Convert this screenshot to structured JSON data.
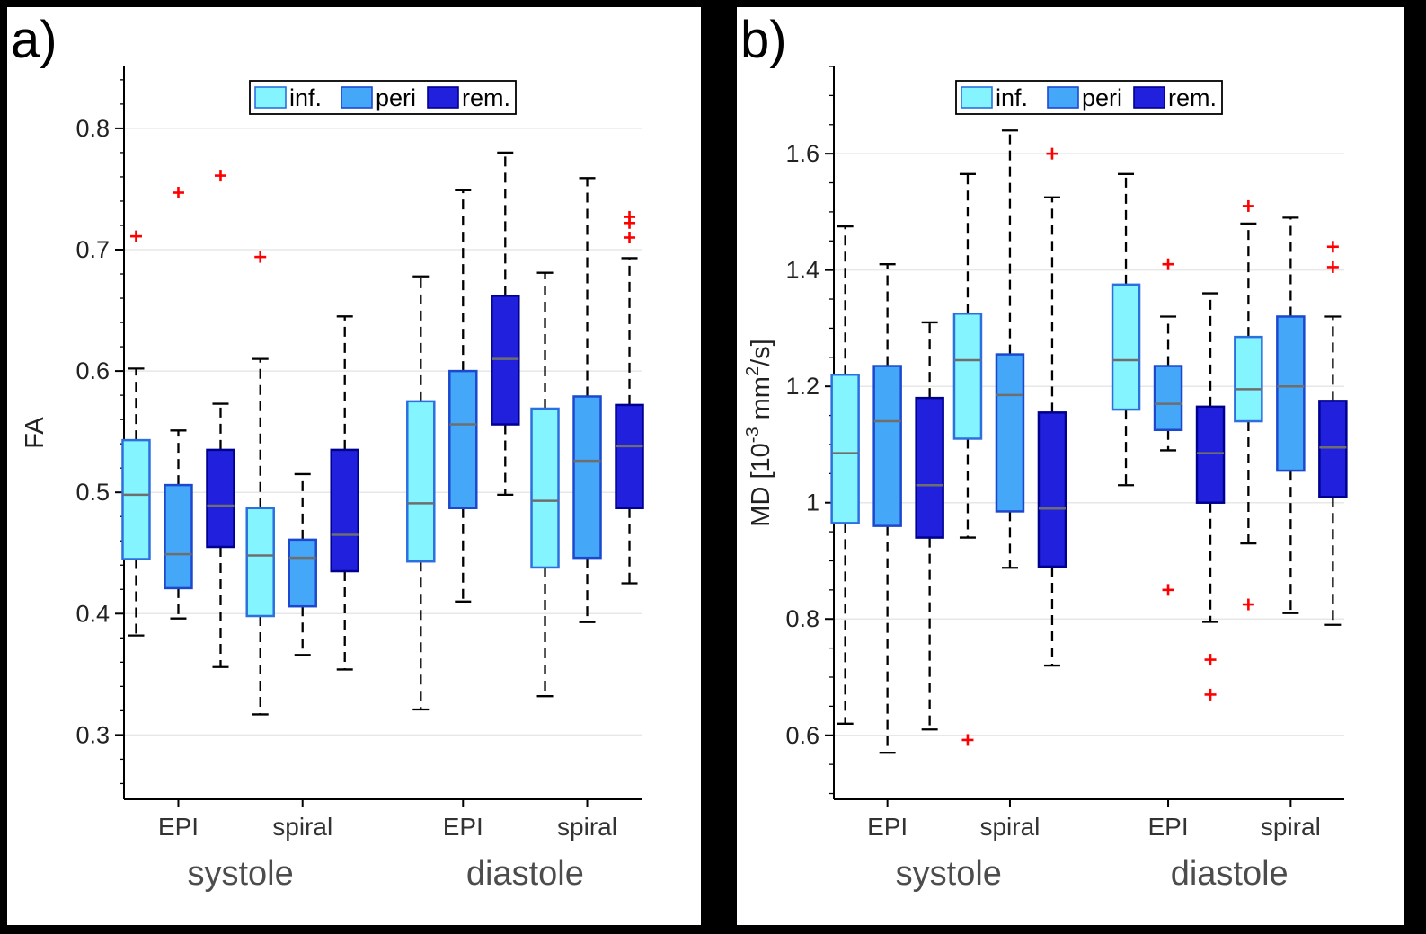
{
  "figure": {
    "background": "#000000",
    "panel_background": "#ffffff"
  },
  "styles": {
    "grid_color": "#e7e7e7",
    "axis_color": "#000000",
    "median_color": "#6e6e6e",
    "whisker_color": "#000000",
    "outlier_color": "#ff0000",
    "tick_label_color": "#222222",
    "xtick_label_color": "#333333",
    "section_label_color": "#4c4c4c",
    "legend_border_color": "#000000"
  },
  "chart_data": [
    {
      "type": "boxplot",
      "panel_label": "a)",
      "ylabel_parts": [
        {
          "t": "FA"
        }
      ],
      "ylim": [
        0.247,
        0.851
      ],
      "yticks": [
        0.3,
        0.4,
        0.5,
        0.6,
        0.7,
        0.8
      ],
      "ytick_labels": [
        "0.3",
        "0.4",
        "0.5",
        "0.6",
        "0.7",
        "0.8"
      ],
      "minor_step": 0.02,
      "x_groups": [
        "EPI",
        "spiral",
        "EPI",
        "spiral"
      ],
      "sections": [
        {
          "label": "systole",
          "span": [
            0,
            1
          ]
        },
        {
          "label": "diastole",
          "span": [
            2,
            3
          ]
        }
      ],
      "legend": [
        "inf.",
        "peri",
        "rem."
      ],
      "series": [
        {
          "name": "inf.",
          "fill": "#84f4ff",
          "edge": "#2b6fe0",
          "boxes": [
            {
              "whislo": 0.382,
              "q1": 0.445,
              "med": 0.498,
              "q3": 0.543,
              "whishi": 0.602,
              "outliers": [
                0.711
              ]
            },
            {
              "whislo": 0.317,
              "q1": 0.398,
              "med": 0.448,
              "q3": 0.487,
              "whishi": 0.61,
              "outliers": [
                0.694
              ]
            },
            {
              "whislo": 0.321,
              "q1": 0.443,
              "med": 0.491,
              "q3": 0.575,
              "whishi": 0.678,
              "outliers": []
            },
            {
              "whislo": 0.332,
              "q1": 0.438,
              "med": 0.493,
              "q3": 0.569,
              "whishi": 0.681,
              "outliers": []
            }
          ]
        },
        {
          "name": "peri",
          "fill": "#44a7f7",
          "edge": "#1c48d0",
          "boxes": [
            {
              "whislo": 0.396,
              "q1": 0.421,
              "med": 0.449,
              "q3": 0.506,
              "whishi": 0.551,
              "outliers": [
                0.747
              ]
            },
            {
              "whislo": 0.366,
              "q1": 0.406,
              "med": 0.446,
              "q3": 0.461,
              "whishi": 0.515,
              "outliers": []
            },
            {
              "whislo": 0.41,
              "q1": 0.487,
              "med": 0.556,
              "q3": 0.6,
              "whishi": 0.749,
              "outliers": []
            },
            {
              "whislo": 0.393,
              "q1": 0.446,
              "med": 0.526,
              "q3": 0.579,
              "whishi": 0.759,
              "outliers": []
            }
          ]
        },
        {
          "name": "rem.",
          "fill": "#2121dd",
          "edge": "#000090",
          "boxes": [
            {
              "whislo": 0.356,
              "q1": 0.455,
              "med": 0.489,
              "q3": 0.535,
              "whishi": 0.573,
              "outliers": [
                0.761
              ]
            },
            {
              "whislo": 0.354,
              "q1": 0.435,
              "med": 0.465,
              "q3": 0.535,
              "whishi": 0.645,
              "outliers": []
            },
            {
              "whislo": 0.498,
              "q1": 0.556,
              "med": 0.61,
              "q3": 0.662,
              "whishi": 0.78,
              "outliers": []
            },
            {
              "whislo": 0.425,
              "q1": 0.487,
              "med": 0.538,
              "q3": 0.572,
              "whishi": 0.693,
              "outliers": [
                0.727,
                0.722,
                0.71
              ]
            }
          ]
        }
      ]
    },
    {
      "type": "boxplot",
      "panel_label": "b)",
      "ylabel_parts": [
        {
          "t": "MD [10"
        },
        {
          "t": "-3",
          "sup": true
        },
        {
          "t": " mm"
        },
        {
          "t": "2",
          "sup": true
        },
        {
          "t": "/s]"
        }
      ],
      "ylim": [
        0.49,
        1.75
      ],
      "yticks": [
        0.6,
        0.8,
        1.0,
        1.2,
        1.4,
        1.6
      ],
      "ytick_labels": [
        "0.6",
        "0.8",
        "1",
        "1.2",
        "1.4",
        "1.6"
      ],
      "minor_step": 0.05,
      "x_groups": [
        "EPI",
        "spiral",
        "EPI",
        "spiral"
      ],
      "sections": [
        {
          "label": "systole",
          "span": [
            0,
            1
          ]
        },
        {
          "label": "diastole",
          "span": [
            2,
            3
          ]
        }
      ],
      "legend": [
        "inf.",
        "peri",
        "rem."
      ],
      "series": [
        {
          "name": "inf.",
          "fill": "#84f4ff",
          "edge": "#2b6fe0",
          "boxes": [
            {
              "whislo": 0.62,
              "q1": 0.965,
              "med": 1.085,
              "q3": 1.22,
              "whishi": 1.475,
              "outliers": []
            },
            {
              "whislo": 0.94,
              "q1": 1.11,
              "med": 1.245,
              "q3": 1.325,
              "whishi": 1.565,
              "outliers": [
                0.592
              ]
            },
            {
              "whislo": 1.03,
              "q1": 1.16,
              "med": 1.245,
              "q3": 1.375,
              "whishi": 1.565,
              "outliers": []
            },
            {
              "whislo": 0.93,
              "q1": 1.14,
              "med": 1.195,
              "q3": 1.285,
              "whishi": 1.48,
              "outliers": [
                1.51,
                0.825
              ]
            }
          ]
        },
        {
          "name": "peri",
          "fill": "#44a7f7",
          "edge": "#1c48d0",
          "boxes": [
            {
              "whislo": 0.57,
              "q1": 0.96,
              "med": 1.14,
              "q3": 1.235,
              "whishi": 1.41,
              "outliers": []
            },
            {
              "whislo": 0.888,
              "q1": 0.985,
              "med": 1.185,
              "q3": 1.255,
              "whishi": 1.64,
              "outliers": []
            },
            {
              "whislo": 1.09,
              "q1": 1.125,
              "med": 1.17,
              "q3": 1.235,
              "whishi": 1.32,
              "outliers": [
                1.41,
                0.85
              ]
            },
            {
              "whislo": 0.81,
              "q1": 1.055,
              "med": 1.2,
              "q3": 1.32,
              "whishi": 1.49,
              "outliers": []
            }
          ]
        },
        {
          "name": "rem.",
          "fill": "#2121dd",
          "edge": "#000090",
          "boxes": [
            {
              "whislo": 0.61,
              "q1": 0.94,
              "med": 1.03,
              "q3": 1.18,
              "whishi": 1.31,
              "outliers": []
            },
            {
              "whislo": 0.72,
              "q1": 0.89,
              "med": 0.99,
              "q3": 1.155,
              "whishi": 1.525,
              "outliers": [
                1.6
              ]
            },
            {
              "whislo": 0.795,
              "q1": 1.0,
              "med": 1.085,
              "q3": 1.165,
              "whishi": 1.36,
              "outliers": [
                0.73,
                0.67
              ]
            },
            {
              "whislo": 0.79,
              "q1": 1.01,
              "med": 1.095,
              "q3": 1.175,
              "whishi": 1.32,
              "outliers": [
                1.44,
                1.405
              ]
            }
          ]
        }
      ]
    }
  ]
}
